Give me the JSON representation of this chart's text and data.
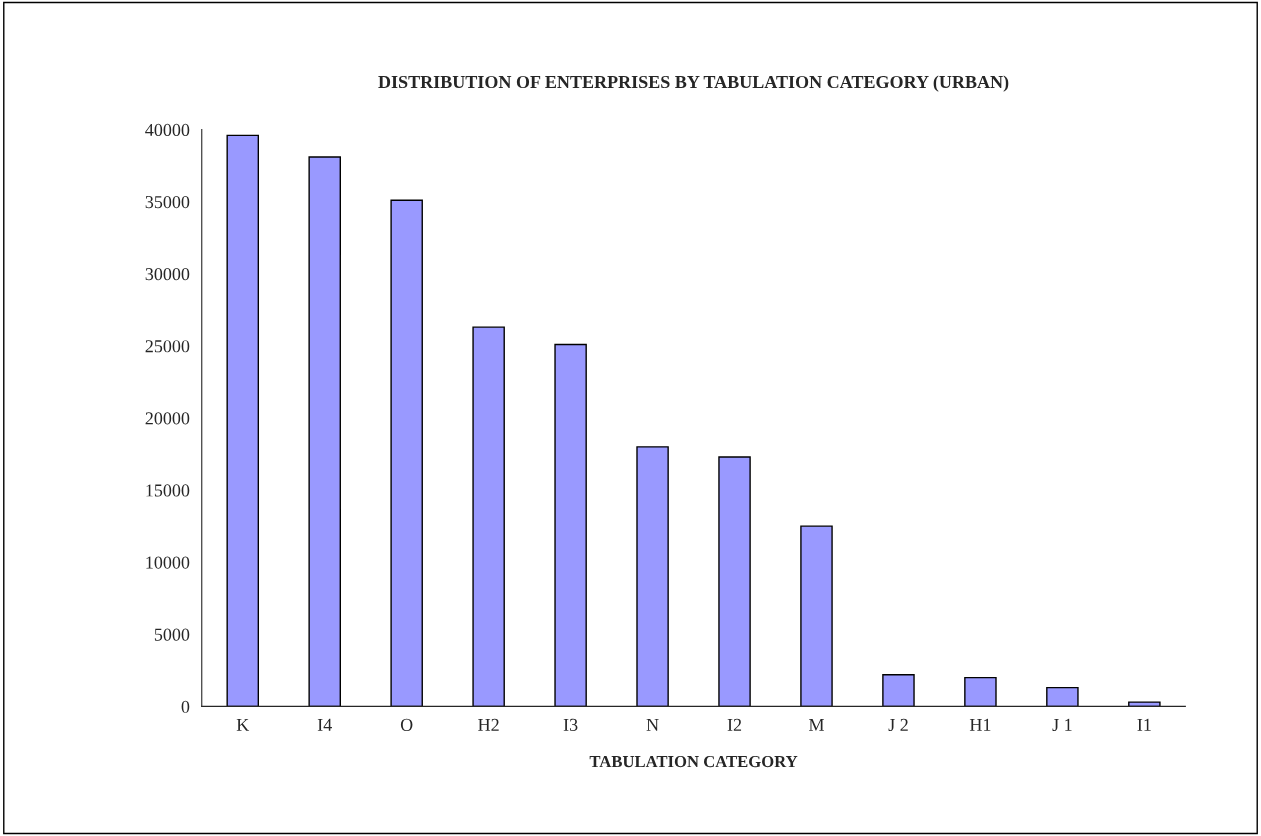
{
  "chart_data": {
    "type": "bar",
    "title": "DISTRIBUTION OF ENTERPRISES BY TABULATION CATEGORY (URBAN)",
    "xlabel": "TABULATION CATEGORY",
    "categories": [
      "K",
      "I4",
      "O",
      "H2",
      "I3",
      "N",
      "I2",
      "M",
      "J 2",
      "H1",
      "J 1",
      "I1"
    ],
    "values": [
      39600,
      38100,
      35100,
      26300,
      25100,
      18000,
      17300,
      12500,
      2200,
      2000,
      1300,
      300
    ],
    "color": "#9999ff",
    "ylim": [
      0,
      40000
    ],
    "yticks": [
      0,
      5000,
      10000,
      15000,
      20000,
      25000,
      30000,
      35000,
      40000
    ],
    "grid": false,
    "legend": false
  }
}
